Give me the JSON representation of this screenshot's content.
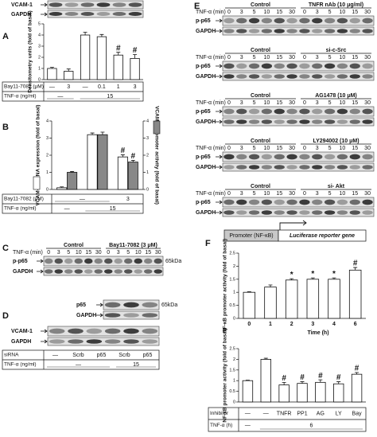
{
  "panels": {
    "A": {
      "letter": "A",
      "blots": [
        "VCAM-1",
        "GAPDH"
      ],
      "table": {
        "rows": [
          {
            "name": "Bay11-7082 (μM)",
            "cells": [
              "—",
              "3",
              "—",
              "0.1",
              "1",
              "3"
            ]
          },
          {
            "name": "TNF-α (ng/ml)",
            "cells": [
              "—",
              "15"
            ]
          }
        ]
      }
    },
    "B": {
      "letter": "B",
      "table": {
        "rows": [
          {
            "name": "Bay11-7082 (μM)",
            "cells": [
              "—",
              "3"
            ]
          },
          {
            "name": "TNF-α (ng/ml)",
            "cells": [
              "—",
              "15"
            ]
          }
        ]
      }
    },
    "C": {
      "letter": "C",
      "left": "Control",
      "right": "Bay11-7082 (3 μM)",
      "time_label": "TNF-α (min)",
      "times": [
        "0",
        "3",
        "5",
        "10",
        "15",
        "30",
        "0",
        "3",
        "5",
        "10",
        "15",
        "30"
      ],
      "rows": [
        "p-p65",
        "GAPDH"
      ],
      "kda": "65kDa"
    },
    "D": {
      "letter": "D",
      "top_rows": [
        "p65",
        "GAPDH"
      ],
      "kda": "65kDa",
      "bottom_rows": [
        "VCAM-1",
        "GAPDH"
      ],
      "table": {
        "rows": [
          {
            "name": "siRNA",
            "cells": [
              "—",
              "Scrb",
              "p65",
              "Scrb",
              "p65"
            ]
          },
          {
            "name": "TNF-α (ng/ml)",
            "cells": [
              "—",
              "15"
            ]
          }
        ]
      }
    },
    "E": {
      "letter": "E",
      "blocks": [
        {
          "left": "Control",
          "right": "TNFR nAb (10 μg/ml)",
          "time_label": "TNF-α (min)",
          "times": [
            "0",
            "3",
            "5",
            "10",
            "15",
            "30",
            "0",
            "3",
            "5",
            "10",
            "15",
            "30"
          ],
          "rows": [
            "p-p65",
            "GAPDH"
          ]
        },
        {
          "left": "Control",
          "right": "si-c-Src",
          "time_label": "TNF-α (min)",
          "times": [
            "0",
            "3",
            "5",
            "10",
            "15",
            "30",
            "0",
            "3",
            "5",
            "10",
            "15",
            "30"
          ],
          "rows": [
            "p-p65",
            "GAPDH"
          ]
        },
        {
          "left": "Control",
          "right": "AG1478 (10 μM)",
          "time_label": "TNF-α (min)",
          "times": [
            "0",
            "3",
            "5",
            "10",
            "15",
            "30",
            "0",
            "3",
            "5",
            "10",
            "15",
            "30"
          ],
          "rows": [
            "p-p65",
            "GAPDH"
          ]
        },
        {
          "left": "Control",
          "right": "LY294002 (10 μM)",
          "time_label": "TNF-α (min)",
          "times": [
            "0",
            "3",
            "5",
            "10",
            "15",
            "30",
            "0",
            "3",
            "5",
            "10",
            "15",
            "30"
          ],
          "rows": [
            "p-p65",
            "GAPDH"
          ]
        },
        {
          "left": "Control",
          "right": "si- Akt",
          "time_label": "TNF-α (min)",
          "times": [
            "0",
            "3",
            "5",
            "10",
            "15",
            "30",
            "0",
            "3",
            "5",
            "10",
            "15",
            "30"
          ],
          "rows": [
            "p-p65",
            "GAPDH"
          ]
        }
      ]
    },
    "F": {
      "letter": "F",
      "promoter": "Promoter (NF-κB)",
      "reporter": "Luciferase reporter gene",
      "table": {
        "rows": [
          {
            "name": "Inhibitor",
            "cells": [
              "—",
              "—",
              "TNFR",
              "PP1",
              "AG",
              "LY",
              "Bay"
            ]
          },
          {
            "name": "TNF-α (h)",
            "cells": [
              "—",
              "6"
            ]
          }
        ]
      }
    }
  },
  "chart_data": [
    {
      "type": "bar",
      "y_label": "Densitometry units (fold of basal)",
      "values": [
        1.0,
        0.75,
        4.0,
        3.85,
        2.2,
        1.9
      ],
      "errors": [
        0.1,
        0.2,
        0.25,
        0.2,
        0.25,
        0.35
      ],
      "annotations": [
        null,
        null,
        null,
        null,
        "#",
        "#"
      ],
      "color": "#ffffff",
      "ylim": [
        0,
        5
      ],
      "yticks": [
        0,
        1,
        2,
        3,
        4,
        5
      ]
    },
    {
      "type": "bar",
      "y_label": "VCAM-1 mRNA expression (fold of basal)",
      "y2_label": "VCAM-1 promoter activity (fold of basal)",
      "series": [
        {
          "color": "#ffffff",
          "values": [
            0.1,
            3.2,
            1.9
          ],
          "errors": [
            0.05,
            0.1,
            0.12
          ],
          "annotations": [
            null,
            null,
            "#"
          ]
        },
        {
          "color": "#888888",
          "axis": "y2",
          "values": [
            1.0,
            3.2,
            1.6
          ],
          "errors": [
            0.05,
            0.15,
            0.1
          ],
          "annotations": [
            null,
            null,
            "#"
          ]
        }
      ],
      "ylim": [
        0,
        4
      ],
      "yticks": [
        0,
        1,
        2,
        3,
        4
      ],
      "y2lim": [
        0,
        4
      ],
      "y2ticks": [
        0,
        1,
        2,
        3,
        4
      ]
    },
    {
      "type": "bar",
      "y_label": "NF-κB promoter activity (fold of basal)",
      "x_label": "Time (h)",
      "categories": [
        "0",
        "1",
        "2",
        "3",
        "4",
        "6"
      ],
      "values": [
        1.0,
        1.2,
        1.47,
        1.5,
        1.5,
        1.85
      ],
      "errors": [
        0.02,
        0.08,
        0.05,
        0.05,
        0.05,
        0.1
      ],
      "annotations": [
        null,
        null,
        "*",
        "*",
        "*",
        "#"
      ],
      "color": "#ffffff",
      "ylim": [
        0,
        2.5
      ],
      "yticks": [
        0,
        0.5,
        1,
        1.5,
        2,
        2.5
      ]
    },
    {
      "type": "bar",
      "y_label": "NF-κB promoter activity (fold of basal)",
      "values": [
        1.0,
        2.0,
        0.8,
        0.87,
        0.92,
        0.85,
        1.3
      ],
      "errors": [
        0.02,
        0.05,
        0.12,
        0.08,
        0.12,
        0.1,
        0.08
      ],
      "annotations": [
        null,
        null,
        "#",
        "#",
        "#",
        "#",
        "#"
      ],
      "color": "#ffffff",
      "ylim": [
        0,
        2.5
      ],
      "yticks": [
        0,
        0.5,
        1,
        1.5,
        2,
        2.5
      ]
    }
  ]
}
